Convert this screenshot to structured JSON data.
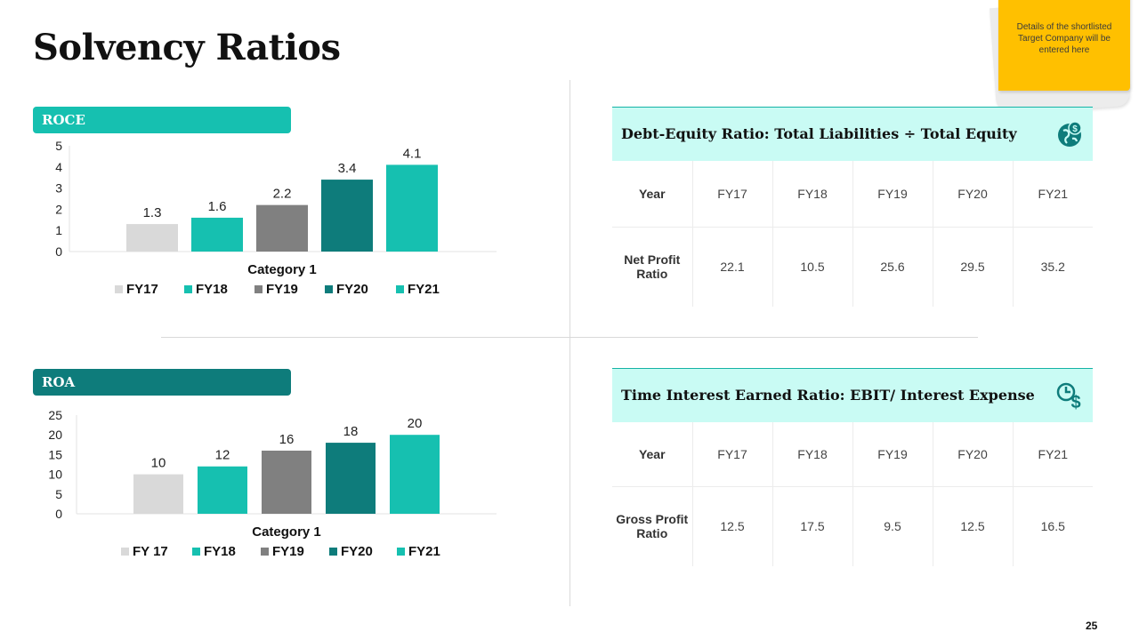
{
  "title": "Solvency Ratios",
  "sticky_note": "Details of the shortlisted Target Company will be entered here",
  "page_number": "25",
  "colors": {
    "teal_light": "#16c0b0",
    "teal_dark": "#0e7c7b",
    "gray_light": "#d9d9d9",
    "gray_mid": "#808080",
    "table_header_bg": "#c9fbf4",
    "note_yellow": "#ffc000"
  },
  "roce": {
    "label": "ROCE"
  },
  "roa": {
    "label": "ROA"
  },
  "chart_data": [
    {
      "type": "bar",
      "title": "ROCE",
      "categories": [
        "Category 1"
      ],
      "series": [
        {
          "name": "FY17",
          "values": [
            1.3
          ],
          "color": "#d9d9d9"
        },
        {
          "name": "FY18",
          "values": [
            1.6
          ],
          "color": "#16c0b0"
        },
        {
          "name": "FY19",
          "values": [
            2.2
          ],
          "color": "#808080"
        },
        {
          "name": "FY20",
          "values": [
            3.4
          ],
          "color": "#0e7c7b"
        },
        {
          "name": "FY21",
          "values": [
            4.1
          ],
          "color": "#16c0b0"
        }
      ],
      "ylim": [
        0,
        5
      ],
      "yticks": [
        "0",
        "1",
        "2",
        "3",
        "4",
        "5"
      ],
      "xlabel": "",
      "ylabel": "",
      "legend": "bottom",
      "grid": false
    },
    {
      "type": "bar",
      "title": "ROA",
      "categories": [
        "Category 1"
      ],
      "series": [
        {
          "name": "FY 17",
          "values": [
            10
          ],
          "color": "#d9d9d9"
        },
        {
          "name": "FY18",
          "values": [
            12
          ],
          "color": "#16c0b0"
        },
        {
          "name": "FY19",
          "values": [
            16
          ],
          "color": "#808080"
        },
        {
          "name": "FY20",
          "values": [
            18
          ],
          "color": "#0e7c7b"
        },
        {
          "name": "FY21",
          "values": [
            20
          ],
          "color": "#16c0b0"
        }
      ],
      "ylim": [
        0,
        25
      ],
      "yticks": [
        "0",
        "5",
        "10",
        "15",
        "20",
        "25"
      ],
      "xlabel": "",
      "ylabel": "",
      "legend": "bottom",
      "grid": false
    }
  ],
  "debt_equity": {
    "heading": "Debt-Equity Ratio: Total Liabilities ÷ Total Equity",
    "icon": "dollar-globe-icon",
    "header_row": [
      "Year",
      "FY17",
      "FY18",
      "FY19",
      "FY20",
      "FY21"
    ],
    "value_row": [
      "Net Profit Ratio",
      "22.1",
      "10.5",
      "25.6",
      "29.5",
      "35.2"
    ]
  },
  "interest_earned": {
    "heading": "Time Interest Earned Ratio: EBIT/ Interest Expense",
    "icon": "clock-dollar-icon",
    "header_row": [
      "Year",
      "FY17",
      "FY18",
      "FY19",
      "FY20",
      "FY21"
    ],
    "value_row": [
      "Gross Profit Ratio",
      "12.5",
      "17.5",
      "9.5",
      "12.5",
      "16.5"
    ]
  }
}
